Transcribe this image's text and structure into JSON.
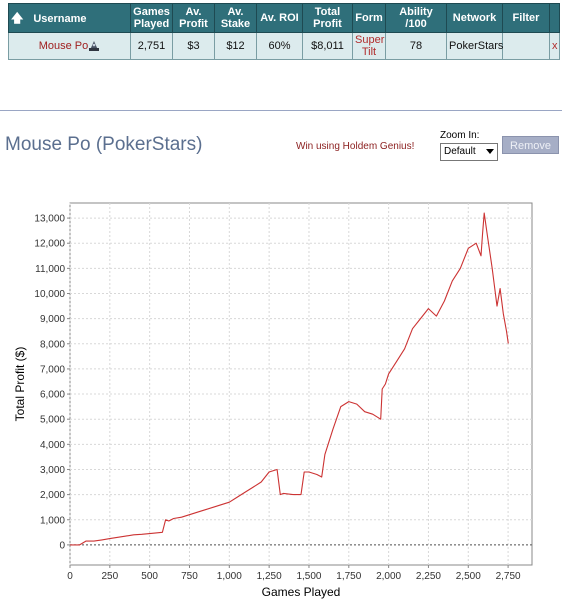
{
  "table": {
    "headers": [
      "Username",
      "Games Played",
      "Av. Profit",
      "Av. Stake",
      "Av. ROI",
      "Total Profit",
      "Form",
      "Ability /100",
      "Network",
      "Filter"
    ],
    "row": {
      "username": "Mouse Po",
      "games_played": "2,751",
      "av_profit": "$3",
      "av_stake": "$12",
      "av_roi": "60%",
      "total_profit": "$8,011",
      "form": "Super Tilt",
      "ability": "78",
      "network": "PokerStars",
      "filter": "",
      "remove": "x"
    },
    "sort_icon": "up-arrow-icon",
    "user_icon": "bot-icon"
  },
  "player_title": "Mouse Po (PokerStars)",
  "promo_link": "Win using Holdem Genius!",
  "zoom": {
    "label": "Zoom In:",
    "selected": "Default"
  },
  "remove_button": "Remove",
  "colors": {
    "header_bg": "#2f6f7a",
    "row_bg": "#dcebed",
    "line": "#cc3333",
    "link": "#a02020"
  },
  "chart_data": {
    "type": "line",
    "xlabel": "Games Played",
    "ylabel": "Total Profit ($)",
    "xlim": [
      0,
      2900
    ],
    "ylim": [
      -800,
      13600
    ],
    "xticks": [
      0,
      250,
      500,
      750,
      1000,
      1250,
      1500,
      1750,
      2000,
      2250,
      2500,
      2750
    ],
    "xtick_labels": [
      "0",
      "250",
      "500",
      "750",
      "1,000",
      "1,250",
      "1,500",
      "1,750",
      "2,000",
      "2,250",
      "2,500",
      "2,750"
    ],
    "yticks": [
      0,
      1000,
      2000,
      3000,
      4000,
      5000,
      6000,
      7000,
      8000,
      9000,
      10000,
      11000,
      12000,
      13000
    ],
    "ytick_labels": [
      "0",
      "1,000",
      "2,000",
      "3,000",
      "4,000",
      "5,000",
      "6,000",
      "7,000",
      "8,000",
      "9,000",
      "10,000",
      "11,000",
      "12,000",
      "13,000"
    ],
    "grid": true,
    "zero_line": true,
    "series": [
      {
        "x": [
          0,
          60,
          100,
          150,
          200,
          250,
          300,
          350,
          400,
          450,
          500,
          580,
          600,
          620,
          650,
          700,
          750,
          800,
          850,
          900,
          950,
          1000,
          1050,
          1100,
          1150,
          1200,
          1250,
          1300,
          1320,
          1340,
          1400,
          1450,
          1470,
          1500,
          1550,
          1580,
          1600,
          1650,
          1700,
          1750,
          1800,
          1850,
          1900,
          1950,
          1960,
          1980,
          2000,
          2050,
          2100,
          2150,
          2200,
          2250,
          2300,
          2350,
          2400,
          2450,
          2500,
          2550,
          2580,
          2590,
          2600,
          2620,
          2650,
          2680,
          2700,
          2720,
          2740,
          2751
        ],
        "y": [
          0,
          0,
          150,
          150,
          200,
          250,
          300,
          350,
          400,
          420,
          450,
          500,
          1000,
          950,
          1050,
          1100,
          1200,
          1300,
          1400,
          1500,
          1600,
          1700,
          1900,
          2100,
          2300,
          2500,
          2900,
          3000,
          2000,
          2050,
          2000,
          2000,
          2900,
          2900,
          2800,
          2700,
          3600,
          4600,
          5500,
          5700,
          5600,
          5300,
          5200,
          5000,
          6200,
          6400,
          6800,
          7300,
          7800,
          8600,
          9000,
          9400,
          9100,
          9700,
          10500,
          11000,
          11800,
          12000,
          11500,
          12400,
          13200,
          12300,
          11000,
          9500,
          10200,
          9200,
          8500,
          8011
        ]
      }
    ]
  }
}
